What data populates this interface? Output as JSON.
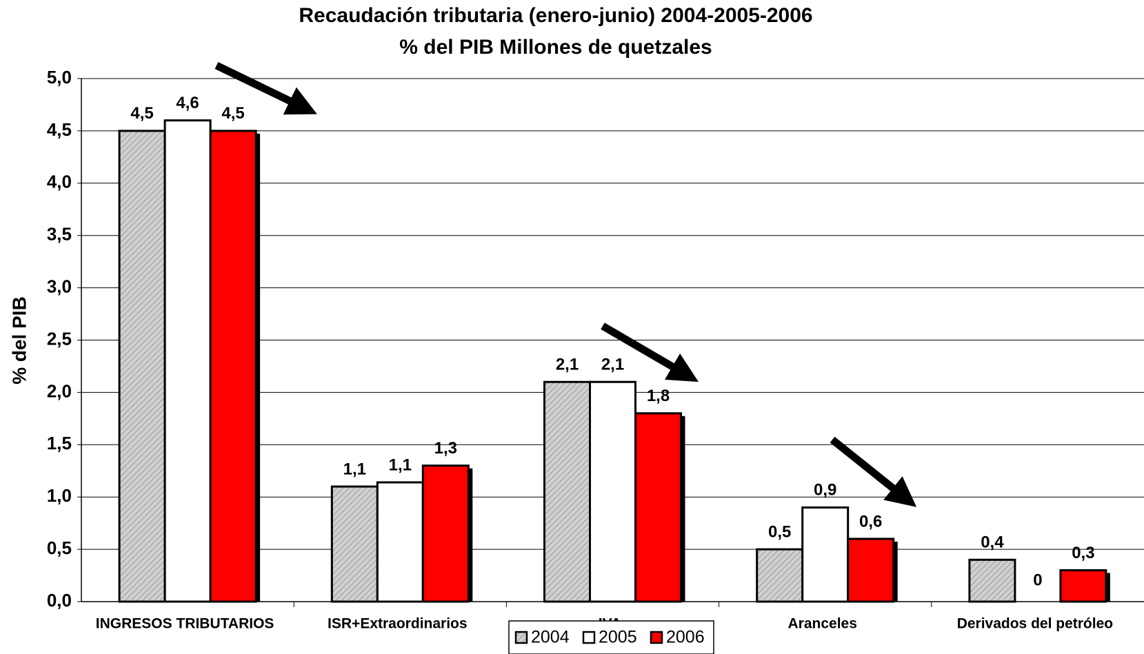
{
  "chart_data": {
    "type": "bar",
    "title": "Recaudación tributaria  (enero-junio) 2004-2005-2006",
    "subtitle": "% del PIB Millones de quetzales",
    "y_label": "% del PIB",
    "categories": [
      "INGRESOS TRIBUTARIOS",
      "ISR+Extraordinarios",
      "IVA",
      "Aranceles",
      "Derivados del petróleo"
    ],
    "series": [
      {
        "name": "2004",
        "color": "#c8c8c8",
        "pattern": "hatch",
        "values": [
          4.5,
          1.1,
          2.1,
          0.5,
          0.4
        ],
        "value_labels": [
          "4,5",
          "1,1",
          "2,1",
          "0,5",
          "0,4"
        ]
      },
      {
        "name": "2005",
        "color": "#ffffff",
        "values": [
          4.6,
          1.14,
          2.1,
          0.9,
          0
        ],
        "value_labels": [
          "4,6",
          "1,1",
          "2,1",
          "0,9",
          "0"
        ]
      },
      {
        "name": "2006",
        "color": "#ff0000",
        "shadow": true,
        "values": [
          4.5,
          1.3,
          1.8,
          0.6,
          0.3
        ],
        "value_labels": [
          "4,5",
          "1,3",
          "1,8",
          "0,6",
          "0,3"
        ]
      }
    ],
    "ylim": [
      0,
      5
    ],
    "yticks": [
      {
        "value": 0,
        "label": "0,0"
      },
      {
        "value": 0.5,
        "label": "0,5"
      },
      {
        "value": 1,
        "label": "1,0"
      },
      {
        "value": 1.5,
        "label": "1,5"
      },
      {
        "value": 2,
        "label": "2,0"
      },
      {
        "value": 2.5,
        "label": "2,5"
      },
      {
        "value": 3,
        "label": "3,0"
      },
      {
        "value": 3.5,
        "label": "3,5"
      },
      {
        "value": 4,
        "label": "4,0"
      },
      {
        "value": 4.5,
        "label": "4,5"
      },
      {
        "value": 5,
        "label": "5,0"
      }
    ],
    "grid": true,
    "legend": "bottom"
  }
}
